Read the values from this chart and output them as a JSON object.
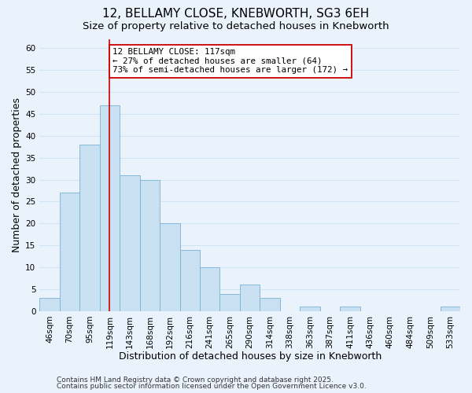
{
  "title": "12, BELLAMY CLOSE, KNEBWORTH, SG3 6EH",
  "subtitle": "Size of property relative to detached houses in Knebworth",
  "xlabel": "Distribution of detached houses by size in Knebworth",
  "ylabel": "Number of detached properties",
  "bin_labels": [
    "46sqm",
    "70sqm",
    "95sqm",
    "119sqm",
    "143sqm",
    "168sqm",
    "192sqm",
    "216sqm",
    "241sqm",
    "265sqm",
    "290sqm",
    "314sqm",
    "338sqm",
    "363sqm",
    "387sqm",
    "411sqm",
    "436sqm",
    "460sqm",
    "484sqm",
    "509sqm",
    "533sqm"
  ],
  "bar_values": [
    3,
    27,
    38,
    47,
    31,
    30,
    20,
    14,
    10,
    4,
    6,
    3,
    0,
    1,
    0,
    1,
    0,
    0,
    0,
    0,
    1
  ],
  "bar_color": "#c9dff2",
  "bar_edge_color": "#7ab3d4",
  "vline_x": 3,
  "vline_color": "#cc0000",
  "ylim": [
    0,
    62
  ],
  "yticks": [
    0,
    5,
    10,
    15,
    20,
    25,
    30,
    35,
    40,
    45,
    50,
    55,
    60
  ],
  "annotation_title": "12 BELLAMY CLOSE: 117sqm",
  "annotation_line1": "← 27% of detached houses are smaller (64)",
  "annotation_line2": "73% of semi-detached houses are larger (172) →",
  "annotation_box_color": "#ffffff",
  "annotation_box_edge": "#cc0000",
  "footer1": "Contains HM Land Registry data © Crown copyright and database right 2025.",
  "footer2": "Contains public sector information licensed under the Open Government Licence v3.0.",
  "background_color": "#eaf3fc",
  "grid_color": "#d0e4f5",
  "title_fontsize": 11,
  "subtitle_fontsize": 9.5,
  "axis_label_fontsize": 9,
  "tick_fontsize": 7.5,
  "annotation_fontsize": 7.8,
  "footer_fontsize": 6.5
}
